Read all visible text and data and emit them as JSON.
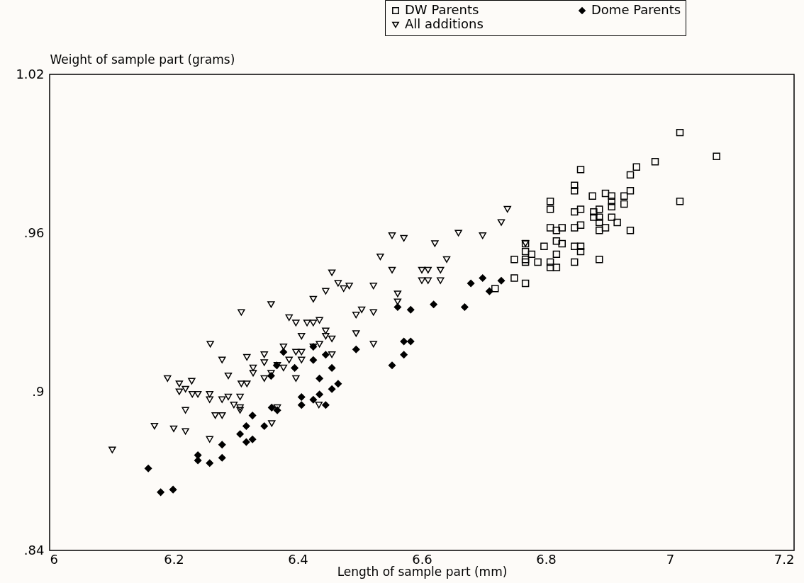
{
  "chart_data": {
    "type": "scatter",
    "xlabel": "Length of sample part (mm)",
    "ylabel": "Weight of sample part (grams)",
    "xlim": [
      6,
      7.2
    ],
    "xticks": [
      6,
      6.2,
      6.4,
      6.6,
      6.8,
      7,
      7.2
    ],
    "ylim": [
      0.84,
      1.02
    ],
    "yticks": [
      {
        "value": 0.84,
        "label": ".84"
      },
      {
        "value": 0.9,
        "label": ".9"
      },
      {
        "value": 0.96,
        "label": ".96"
      },
      {
        "value": 1.02,
        "label": "1.02"
      }
    ],
    "grid": false,
    "legend": "top right",
    "series": [
      {
        "name": "DW Parents",
        "color": "#000000",
        "marker": "square",
        "x": [
          7.016,
          7.075,
          6.976,
          6.946,
          6.936,
          6.856,
          6.846,
          6.846,
          6.936,
          6.896,
          6.875,
          6.906,
          6.926,
          6.926,
          6.906,
          6.906,
          6.807,
          6.807,
          6.846,
          6.856,
          6.877,
          6.877,
          6.886,
          6.886,
          6.886,
          6.906,
          6.915,
          6.856,
          6.846,
          6.807,
          6.817,
          6.826,
          6.886,
          6.896,
          6.936,
          7.016,
          6.767,
          6.797,
          6.817,
          6.826,
          6.846,
          6.856,
          6.856,
          6.767,
          6.777,
          6.817,
          6.767,
          6.767,
          6.787,
          6.749,
          6.807,
          6.807,
          6.817,
          6.846,
          6.886,
          6.749,
          6.767,
          6.718
        ],
        "values": [
          0.998,
          0.989,
          0.987,
          0.985,
          0.982,
          0.984,
          0.978,
          0.976,
          0.976,
          0.975,
          0.974,
          0.974,
          0.974,
          0.971,
          0.972,
          0.97,
          0.972,
          0.969,
          0.968,
          0.969,
          0.968,
          0.966,
          0.969,
          0.966,
          0.964,
          0.966,
          0.964,
          0.963,
          0.962,
          0.962,
          0.961,
          0.962,
          0.961,
          0.962,
          0.961,
          0.972,
          0.956,
          0.955,
          0.957,
          0.956,
          0.955,
          0.955,
          0.953,
          0.953,
          0.952,
          0.952,
          0.95,
          0.949,
          0.949,
          0.95,
          0.949,
          0.947,
          0.947,
          0.949,
          0.95,
          0.943,
          0.941,
          0.939
        ]
      },
      {
        "name": "Dome Parents",
        "color": "#000000",
        "marker": "diamond",
        "x": [
          6.679,
          6.698,
          6.728,
          6.709,
          6.619,
          6.669,
          6.582,
          6.561,
          6.571,
          6.582,
          6.571,
          6.552,
          6.494,
          6.425,
          6.445,
          6.425,
          6.455,
          6.435,
          6.455,
          6.465,
          6.406,
          6.406,
          6.425,
          6.435,
          6.445,
          6.395,
          6.377,
          6.366,
          6.357,
          6.358,
          6.367,
          6.327,
          6.317,
          6.346,
          6.307,
          6.317,
          6.327,
          6.278,
          6.239,
          6.239,
          6.258,
          6.278,
          6.159,
          6.179,
          6.199
        ],
        "values": [
          0.941,
          0.943,
          0.942,
          0.938,
          0.933,
          0.932,
          0.931,
          0.932,
          0.919,
          0.919,
          0.914,
          0.91,
          0.916,
          0.917,
          0.914,
          0.912,
          0.909,
          0.905,
          0.901,
          0.903,
          0.898,
          0.895,
          0.897,
          0.899,
          0.895,
          0.909,
          0.915,
          0.91,
          0.906,
          0.894,
          0.893,
          0.891,
          0.887,
          0.887,
          0.884,
          0.881,
          0.882,
          0.88,
          0.876,
          0.874,
          0.873,
          0.875,
          0.871,
          0.862,
          0.863
        ]
      },
      {
        "name": "All additions",
        "color": "#000000",
        "marker": "triangle",
        "x": [
          6.738,
          6.728,
          6.659,
          6.698,
          6.552,
          6.571,
          6.621,
          6.533,
          6.64,
          6.455,
          6.552,
          6.6,
          6.61,
          6.63,
          6.6,
          6.61,
          6.63,
          6.465,
          6.474,
          6.483,
          6.445,
          6.522,
          6.561,
          6.561,
          6.425,
          6.503,
          6.494,
          6.522,
          6.415,
          6.425,
          6.435,
          6.445,
          6.445,
          6.455,
          6.494,
          6.522,
          6.406,
          6.425,
          6.435,
          6.455,
          6.406,
          6.434,
          6.309,
          6.357,
          6.259,
          6.278,
          6.318,
          6.288,
          6.19,
          6.209,
          6.229,
          6.309,
          6.318,
          6.346,
          6.346,
          6.328,
          6.328,
          6.357,
          6.367,
          6.377,
          6.377,
          6.386,
          6.397,
          6.406,
          6.397,
          6.346,
          6.386,
          6.397,
          6.209,
          6.219,
          6.23,
          6.239,
          6.258,
          6.258,
          6.278,
          6.288,
          6.307,
          6.297,
          6.307,
          6.307,
          6.219,
          6.267,
          6.278,
          6.169,
          6.2,
          6.219,
          6.258,
          6.358,
          6.367,
          6.101,
          6.767
        ],
        "values": [
          0.969,
          0.964,
          0.96,
          0.959,
          0.959,
          0.958,
          0.956,
          0.951,
          0.95,
          0.945,
          0.946,
          0.946,
          0.946,
          0.946,
          0.942,
          0.942,
          0.942,
          0.941,
          0.939,
          0.94,
          0.938,
          0.94,
          0.937,
          0.934,
          0.935,
          0.931,
          0.929,
          0.93,
          0.926,
          0.926,
          0.927,
          0.923,
          0.921,
          0.92,
          0.922,
          0.918,
          0.921,
          0.917,
          0.918,
          0.914,
          0.912,
          0.895,
          0.93,
          0.933,
          0.918,
          0.912,
          0.913,
          0.906,
          0.905,
          0.903,
          0.904,
          0.903,
          0.903,
          0.914,
          0.911,
          0.909,
          0.907,
          0.907,
          0.91,
          0.909,
          0.917,
          0.912,
          0.915,
          0.915,
          0.905,
          0.905,
          0.928,
          0.926,
          0.9,
          0.901,
          0.899,
          0.899,
          0.899,
          0.897,
          0.897,
          0.898,
          0.898,
          0.895,
          0.894,
          0.893,
          0.893,
          0.891,
          0.891,
          0.887,
          0.886,
          0.885,
          0.882,
          0.888,
          0.894,
          0.878,
          0.956
        ]
      }
    ]
  }
}
